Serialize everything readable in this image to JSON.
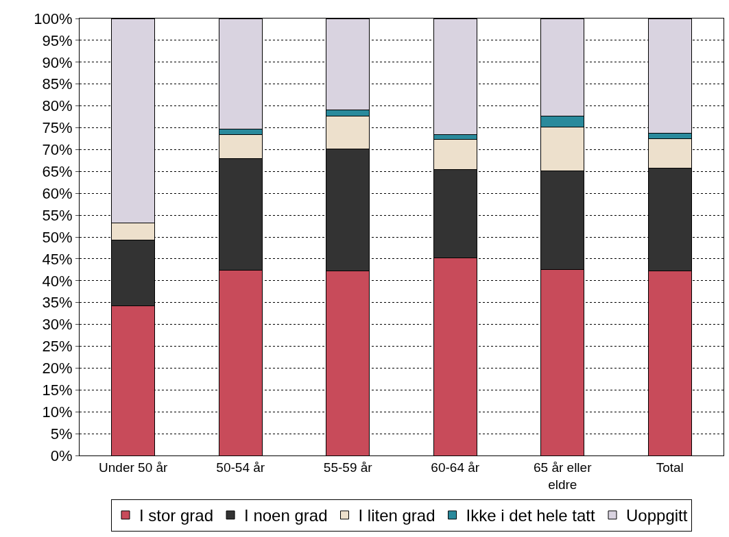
{
  "chart_data": {
    "type": "bar",
    "stacked": true,
    "categories": [
      "Under 50 år",
      "50-54 år",
      "55-59 år",
      "60-64 år",
      "65 år eller eldre",
      "Total"
    ],
    "series": [
      {
        "name": "I stor grad",
        "color": "#c84b5a",
        "values": [
          34.2,
          42.4,
          42.3,
          45.2,
          42.6,
          42.3
        ]
      },
      {
        "name": "I noen grad",
        "color": "#333333",
        "values": [
          15.1,
          25.5,
          27.9,
          20.2,
          22.6,
          23.5
        ]
      },
      {
        "name": "I liten grad",
        "color": "#ede0cc",
        "values": [
          3.9,
          5.6,
          7.5,
          7.0,
          10.0,
          6.7
        ]
      },
      {
        "name": "Ikke i det hele tatt",
        "color": "#2a8a9c",
        "values": [
          0,
          1.2,
          1.4,
          1.1,
          2.5,
          1.3
        ]
      },
      {
        "name": "Uoppgitt",
        "color": "#d9d3e0",
        "values": [
          46.8,
          25.3,
          20.9,
          26.5,
          22.3,
          26.2
        ]
      }
    ],
    "ylim": [
      0,
      100
    ],
    "yticks": [
      {
        "value": 0,
        "label": "0%"
      },
      {
        "value": 5,
        "label": "5%"
      },
      {
        "value": 10,
        "label": "10%"
      },
      {
        "value": 15,
        "label": "15%"
      },
      {
        "value": 20,
        "label": "20%"
      },
      {
        "value": 25,
        "label": "25%"
      },
      {
        "value": 30,
        "label": "30%"
      },
      {
        "value": 35,
        "label": "35%"
      },
      {
        "value": 40,
        "label": "40%"
      },
      {
        "value": 45,
        "label": "45%"
      },
      {
        "value": 50,
        "label": "50%"
      },
      {
        "value": 55,
        "label": "55%"
      },
      {
        "value": 60,
        "label": "60%"
      },
      {
        "value": 65,
        "label": "65%"
      },
      {
        "value": 70,
        "label": "70%"
      },
      {
        "value": 75,
        "label": "75%"
      },
      {
        "value": 80,
        "label": "80%"
      },
      {
        "value": 85,
        "label": "85%"
      },
      {
        "value": 90,
        "label": "90%"
      },
      {
        "value": 95,
        "label": "95%"
      },
      {
        "value": 100,
        "label": "100%"
      }
    ],
    "grid": "y",
    "legend": "bottom"
  }
}
